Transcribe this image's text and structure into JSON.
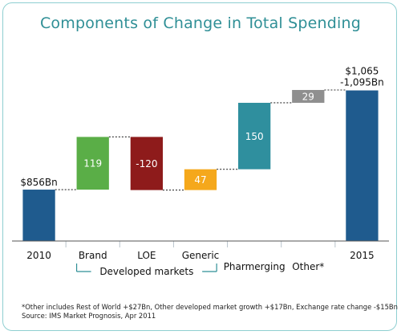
{
  "chart_data": {
    "type": "waterfall",
    "title": "Components of Change in Total Spending",
    "unit": "Bn",
    "ylim": [
      740,
      1110
    ],
    "steps": [
      {
        "key": "2010",
        "label": "2010",
        "kind": "total",
        "value": 856,
        "data_label": "$856Bn",
        "color": "#1f5b8e"
      },
      {
        "key": "brand",
        "label": "Brand",
        "kind": "delta",
        "value": 119,
        "data_label": "119",
        "color": "#5aae47"
      },
      {
        "key": "loe",
        "label": "LOE",
        "kind": "delta",
        "value": -120,
        "data_label": "-120",
        "color": "#8e1b1b"
      },
      {
        "key": "generic",
        "label": "Generic",
        "kind": "delta",
        "value": 47,
        "data_label": "47",
        "color": "#f5a81c"
      },
      {
        "key": "pharmerging",
        "label": "Pharmerging",
        "kind": "delta",
        "value": 150,
        "data_label": "150",
        "color": "#2f8f9e"
      },
      {
        "key": "other",
        "label": "Other*",
        "kind": "delta",
        "value": 29,
        "data_label": "29",
        "color": "#8f8f8f"
      },
      {
        "key": "2015",
        "label": "2015",
        "kind": "total",
        "value": 1080,
        "data_label_lines": [
          "$1,065",
          "-1,095Bn"
        ],
        "color": "#1f5b8e"
      }
    ],
    "group_label": "Developed markets",
    "footnote_lines": [
      "*Other includes Rest of World +$27Bn, Other developed market growth +$17Bn, Exchange rate change -$15Bn",
      "Source: IMS Market Prognosis, Apr 2011"
    ]
  },
  "colors": {
    "title": "#2f8f96",
    "border": "#8fcfd1",
    "axis": "#555555",
    "connector": "#333333",
    "divider": "#b9c4cc",
    "bracket": "#2f8f96",
    "label_text": "#111111",
    "bar_text": "#ffffff"
  }
}
